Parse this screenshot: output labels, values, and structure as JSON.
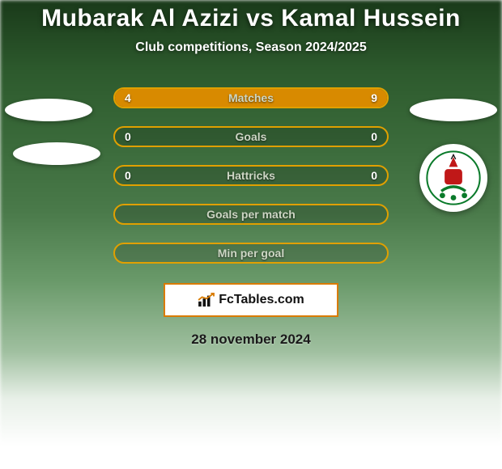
{
  "title": "Mubarak Al Azizi vs Kamal Hussein",
  "subtitle": "Club competitions, Season 2024/2025",
  "date": "28 november 2024",
  "brand": "FcTables.com",
  "colors": {
    "border": "#e0a000",
    "fill_left": "#d88a00",
    "fill_right": "#d88a00",
    "track": "rgba(0,0,0,0.15)"
  },
  "rows": [
    {
      "label": "Matches",
      "left": "4",
      "right": "9",
      "left_pct": 31,
      "right_pct": 69,
      "show_values": true
    },
    {
      "label": "Goals",
      "left": "0",
      "right": "0",
      "left_pct": 0,
      "right_pct": 0,
      "show_values": true
    },
    {
      "label": "Hattricks",
      "left": "0",
      "right": "0",
      "left_pct": 0,
      "right_pct": 0,
      "show_values": true
    },
    {
      "label": "Goals per match",
      "left": "",
      "right": "",
      "left_pct": 0,
      "right_pct": 0,
      "show_values": false
    },
    {
      "label": "Min per goal",
      "left": "",
      "right": "",
      "left_pct": 0,
      "right_pct": 0,
      "show_values": false
    }
  ]
}
